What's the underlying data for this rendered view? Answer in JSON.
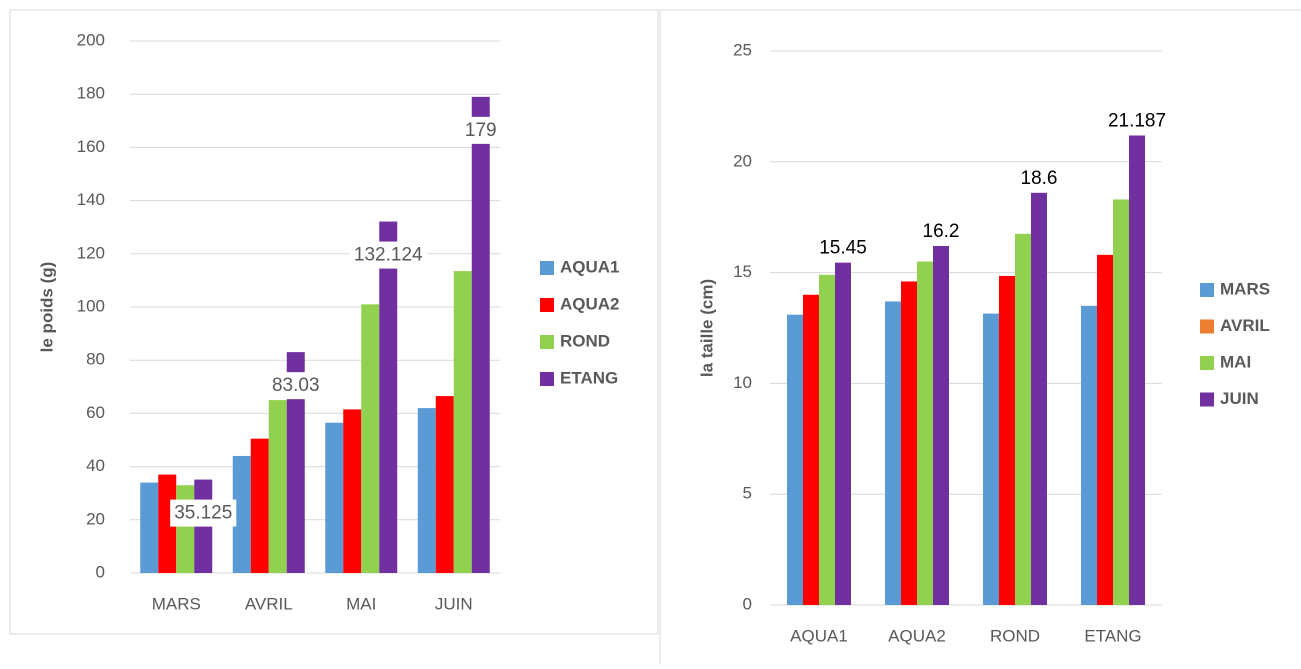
{
  "chart_data": [
    {
      "type": "bar",
      "ylabel": "le poids (g)",
      "categories": [
        "MARS",
        "AVRIL",
        "MAI",
        "JUIN"
      ],
      "series": [
        {
          "name": "AQUA1",
          "color": "#5b9bd5",
          "values": [
            34,
            44,
            56.5,
            62
          ]
        },
        {
          "name": "AQUA2",
          "color": "#ff0000",
          "values": [
            37,
            50.5,
            61.5,
            66.5
          ]
        },
        {
          "name": "ROND",
          "color": "#92d050",
          "values": [
            33,
            65,
            101,
            113.5
          ]
        },
        {
          "name": "ETANG",
          "color": "#7030a0",
          "values": [
            35.125,
            83.03,
            132.124,
            179
          ],
          "data_labels": true
        }
      ],
      "ylim": [
        0,
        200
      ],
      "yticks": [
        0,
        20,
        40,
        60,
        80,
        100,
        120,
        140,
        160,
        180,
        200
      ],
      "grid": true,
      "label_box": true,
      "legend": "right"
    },
    {
      "type": "bar",
      "ylabel": "la taille (cm)",
      "categories": [
        "AQUA1",
        "AQUA2",
        "ROND",
        "ETANG"
      ],
      "series": [
        {
          "name": "MARS",
          "color": "#5b9bd5",
          "values": [
            13.1,
            13.7,
            13.15,
            13.5
          ]
        },
        {
          "name": "AVRIL",
          "color": "#ff0000",
          "legend_color": "#ed7d31",
          "values": [
            14.0,
            14.6,
            14.85,
            15.8
          ]
        },
        {
          "name": "MAI",
          "color": "#92d050",
          "values": [
            14.9,
            15.5,
            16.75,
            18.3
          ]
        },
        {
          "name": "JUIN",
          "color": "#7030a0",
          "values": [
            15.45,
            16.2,
            18.6,
            21.187
          ],
          "data_labels": true
        }
      ],
      "ylim": [
        0,
        25
      ],
      "yticks": [
        0,
        5,
        10,
        15,
        20,
        25
      ],
      "grid": true,
      "label_box": false,
      "legend": "right"
    }
  ]
}
